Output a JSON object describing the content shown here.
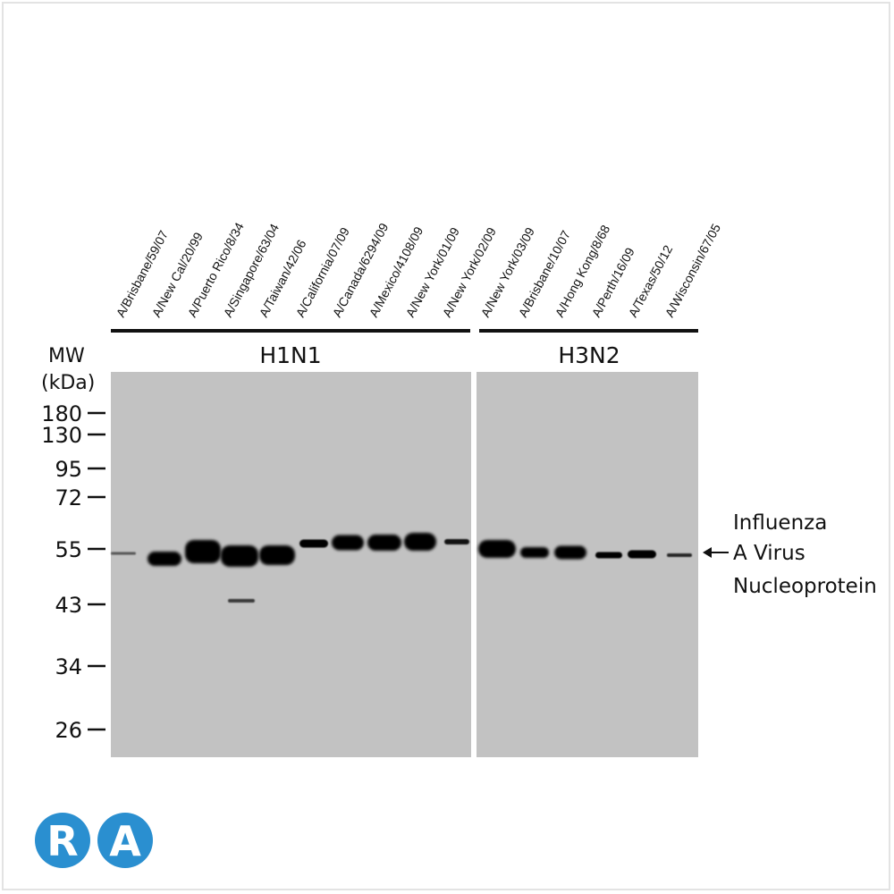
{
  "lanes": [
    "A/Brisbane/59/07",
    "A/New Cal/20/99",
    "A/Puerto Rico/8/34",
    "A/Singapore/63/04",
    "A/Taiwan/42/06",
    "A/California/07/09",
    "A/Canada/6294/09",
    "A/Mexico/4108/09",
    "A/New York/01/09",
    "A/New York/02/09",
    "A/New York/03/09",
    "A/Brisbane/10/07",
    "A/Hong Kong/8/68",
    "A/Perth/16/09",
    "A/Texas/50/12",
    "A/Wisconsin/67/05"
  ],
  "groups": [
    {
      "label": "H1N1"
    },
    {
      "label": "H3N2"
    }
  ],
  "mw": {
    "title_line1": "MW",
    "title_line2": "(kDa)",
    "markers": [
      "180",
      "130",
      "95",
      "72",
      "55",
      "43",
      "34",
      "26"
    ]
  },
  "target": {
    "line1": "Influenza",
    "line2": "A Virus",
    "line3": "Nucleoprotein"
  },
  "logo": {
    "text": "RA",
    "color": "#2a8fd0"
  },
  "colors": {
    "blot_background": "#c2c2c2",
    "band": "#050505",
    "text": "#111111"
  }
}
